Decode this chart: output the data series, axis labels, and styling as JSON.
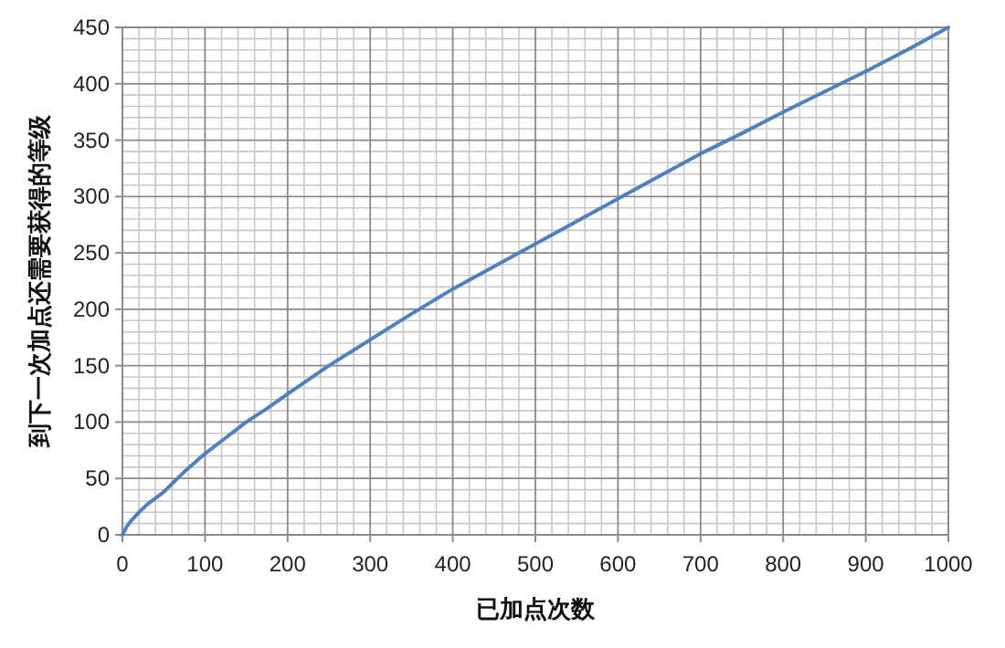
{
  "chart_data": {
    "type": "line",
    "xlabel": "已加点次数",
    "ylabel": "到下一次加点还需要获得的等级",
    "xlim": [
      0,
      1000
    ],
    "xticks": [
      0,
      100,
      200,
      300,
      400,
      500,
      600,
      700,
      800,
      900,
      1000
    ],
    "ylim": [
      0,
      450
    ],
    "yticks": [
      0,
      50,
      100,
      150,
      200,
      250,
      300,
      350,
      400,
      450
    ],
    "grid": true,
    "marker": "none",
    "line_style": "solid",
    "series": [
      {
        "color": "#4f81bd",
        "x": [
          0,
          5,
          10,
          20,
          30,
          50,
          75,
          100,
          125,
          150,
          175,
          200,
          250,
          300,
          350,
          400,
          450,
          500,
          550,
          600,
          650,
          700,
          750,
          800,
          850,
          900,
          950,
          1000
        ],
        "values": [
          0,
          7,
          12,
          20,
          27,
          38,
          56,
          72,
          86,
          100,
          112,
          125,
          150,
          173,
          196,
          218,
          238,
          258,
          278,
          298,
          318,
          338,
          356,
          375,
          393,
          411,
          430,
          450
        ]
      }
    ]
  }
}
